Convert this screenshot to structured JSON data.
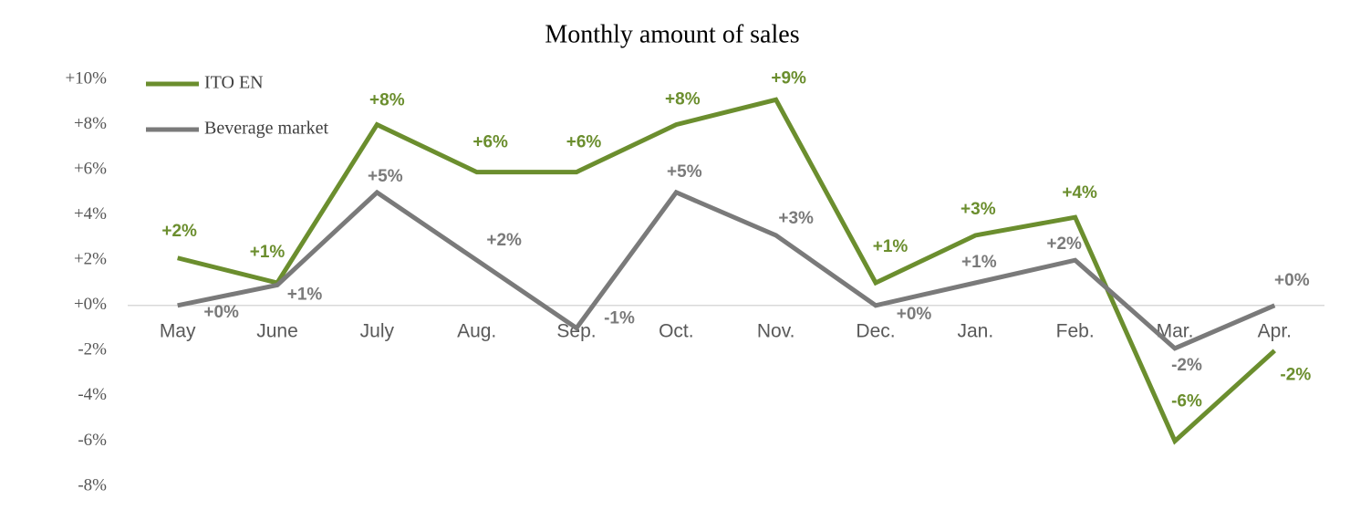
{
  "chart_data": {
    "type": "line",
    "title": "Monthly amount of sales",
    "categories": [
      "May",
      "June",
      "July",
      "Aug.",
      "Sep.",
      "Oct.",
      "Nov.",
      "Dec.",
      "Jan.",
      "Feb.",
      "Mar.",
      "Apr."
    ],
    "series": [
      {
        "name": "ITO EN",
        "color": "#6b8e2e",
        "values": [
          2.1,
          1.0,
          8.0,
          5.9,
          5.9,
          8.0,
          9.1,
          1.0,
          3.1,
          3.9,
          -6.0,
          -2.0
        ],
        "value_labels": [
          "+2%",
          "+1%",
          "+8%",
          "+6%",
          "+6%",
          "+8%",
          "+9%",
          "+1%",
          "+3%",
          "+4%",
          "-6%",
          "-2%"
        ]
      },
      {
        "name": "Beverage market",
        "color": "#7a7a7a",
        "values": [
          0,
          0.9,
          5.0,
          2.0,
          -1.0,
          5.0,
          3.1,
          0,
          1.0,
          2.0,
          -1.9,
          0
        ],
        "value_labels": [
          "+0%",
          "+1%",
          "+5%",
          "+2%",
          "-1%",
          "+5%",
          "+3%",
          "+0%",
          "+1%",
          "+2%",
          "-2%",
          "+0%"
        ]
      }
    ],
    "ylim": [
      -8,
      10
    ],
    "yticks": [
      {
        "value": -8,
        "label": "-8%"
      },
      {
        "value": -6,
        "label": "-6%"
      },
      {
        "value": -4,
        "label": "-4%"
      },
      {
        "value": -2,
        "label": "-2%"
      },
      {
        "value": 0,
        "label": "+0%"
      },
      {
        "value": 2,
        "label": "+2%"
      },
      {
        "value": 4,
        "label": "+4%"
      },
      {
        "value": 6,
        "label": "+6%"
      },
      {
        "value": 8,
        "label": "+8%"
      },
      {
        "value": 10,
        "label": "+10%"
      }
    ],
    "grid": false,
    "legend": "top-left"
  }
}
